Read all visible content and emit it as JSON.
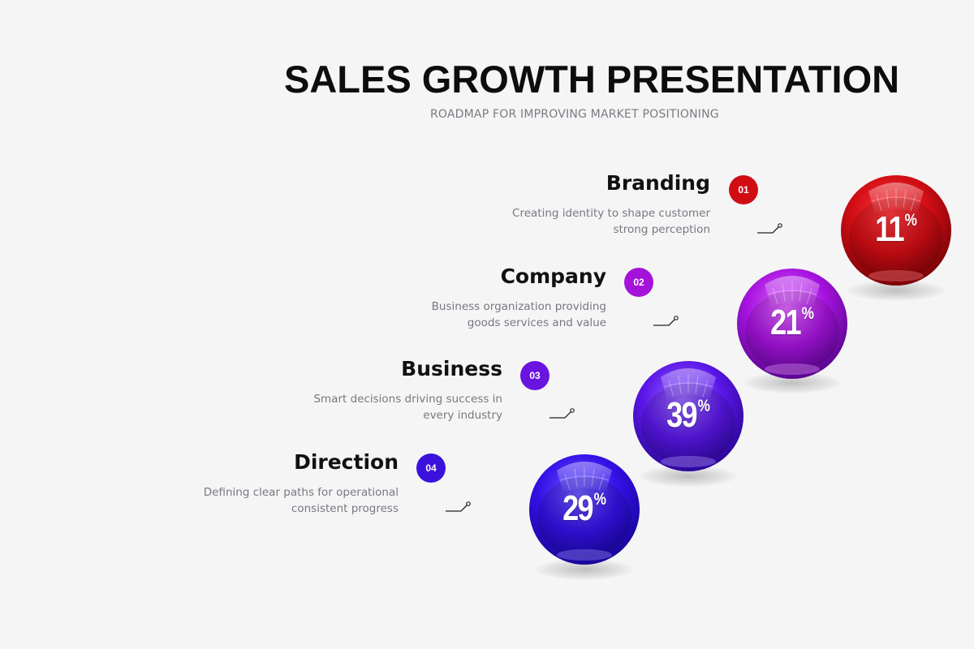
{
  "title": "SALES GROWTH PRESENTATION",
  "subtitle": "ROADMAP FOR IMPROVING MARKET POSITIONING",
  "steps": [
    {
      "number": "01",
      "heading": "Branding",
      "desc_line1": "Creating identity to shape customer",
      "desc_line2": "strong perception",
      "value": "11",
      "unit": "%",
      "color": "#d10d14",
      "color_dark": "#8a0509",
      "color_light": "#ff4a4f"
    },
    {
      "number": "02",
      "heading": "Company",
      "desc_line1": "Business organization providing",
      "desc_line2": "goods services and value",
      "value": "21",
      "unit": "%",
      "color": "#a413d9",
      "color_dark": "#5e0890",
      "color_light": "#d95cff"
    },
    {
      "number": "03",
      "heading": "Business",
      "desc_line1": "Smart decisions driving success in",
      "desc_line2": "every industry",
      "value": "39",
      "unit": "%",
      "color": "#5a14e6",
      "color_dark": "#2f08a0",
      "color_light": "#8e5cff"
    },
    {
      "number": "04",
      "heading": "Direction",
      "desc_line1": "Defining clear paths for operational",
      "desc_line2": "consistent progress",
      "value": "29",
      "unit": "%",
      "color": "#3210e6",
      "color_dark": "#1a069e",
      "color_light": "#6a55ff"
    }
  ]
}
